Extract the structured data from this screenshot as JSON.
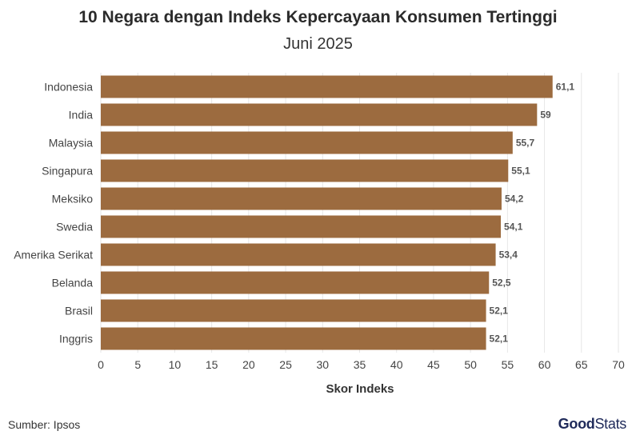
{
  "chart_data": {
    "type": "bar",
    "orientation": "horizontal",
    "title": "10 Negara dengan Indeks Kepercayaan Konsumen Tertinggi",
    "subtitle": "Juni 2025",
    "xlabel": "Skor Indeks",
    "ylabel": "",
    "categories": [
      "Indonesia",
      "India",
      "Malaysia",
      "Singapura",
      "Meksiko",
      "Swedia",
      "Amerika Serikat",
      "Belanda",
      "Brasil",
      "Inggris"
    ],
    "values": [
      61.1,
      59,
      55.7,
      55.1,
      54.2,
      54.1,
      53.4,
      52.5,
      52.1,
      52.1
    ],
    "value_labels": [
      "61,1",
      "59",
      "55,7",
      "55,1",
      "54,2",
      "54,1",
      "53,4",
      "52,5",
      "52,1",
      "52,1"
    ],
    "xlim": [
      0,
      70
    ],
    "xticks": [
      0,
      5,
      10,
      15,
      20,
      25,
      30,
      35,
      40,
      45,
      50,
      55,
      60,
      65,
      70
    ],
    "grid": true,
    "bar_color": "#9c6b3f"
  },
  "footer": {
    "source": "Sumber: Ipsos",
    "logo_good": "Good",
    "logo_stats": "Stats"
  }
}
